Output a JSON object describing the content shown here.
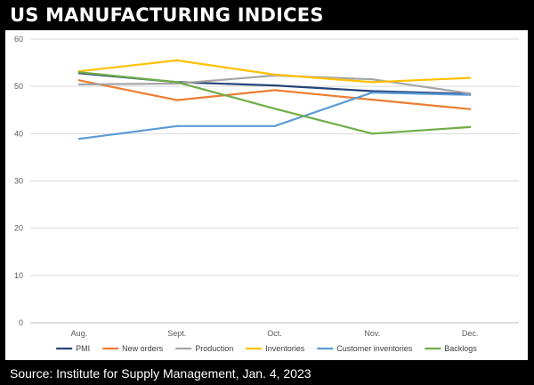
{
  "header": {
    "title": "US MANUFACTURING INDICES"
  },
  "footer": {
    "source": "Source: Institute for Supply Management, Jan. 4, 2023"
  },
  "chart_data": {
    "type": "line",
    "title": "US MANUFACTURING INDICES",
    "xlabel": "",
    "ylabel": "",
    "categories": [
      "Aug.",
      "Sept.",
      "Oct.",
      "Nov.",
      "Dec."
    ],
    "ylim": [
      0,
      60
    ],
    "yticks": [
      0,
      10,
      20,
      30,
      40,
      50,
      60
    ],
    "grid": true,
    "legend_position": "bottom",
    "series": [
      {
        "name": "PMI",
        "color": "#264478",
        "values": [
          52.8,
          50.9,
          50.2,
          49.0,
          48.4
        ]
      },
      {
        "name": "New orders",
        "color": "#ED7D31",
        "values": [
          51.3,
          47.1,
          49.2,
          47.2,
          45.2
        ]
      },
      {
        "name": "Production",
        "color": "#A5A5A5",
        "values": [
          50.4,
          50.6,
          52.3,
          51.5,
          48.5
        ]
      },
      {
        "name": "Inventories",
        "color": "#FFC000",
        "values": [
          53.2,
          55.5,
          52.5,
          50.9,
          51.8
        ]
      },
      {
        "name": "Customer inventories",
        "color": "#5B9BD5",
        "values": [
          38.9,
          41.6,
          41.6,
          48.7,
          48.2
        ]
      },
      {
        "name": "Backlogs",
        "color": "#70AD47",
        "values": [
          53.0,
          50.9,
          45.3,
          40.0,
          41.4
        ]
      }
    ]
  }
}
